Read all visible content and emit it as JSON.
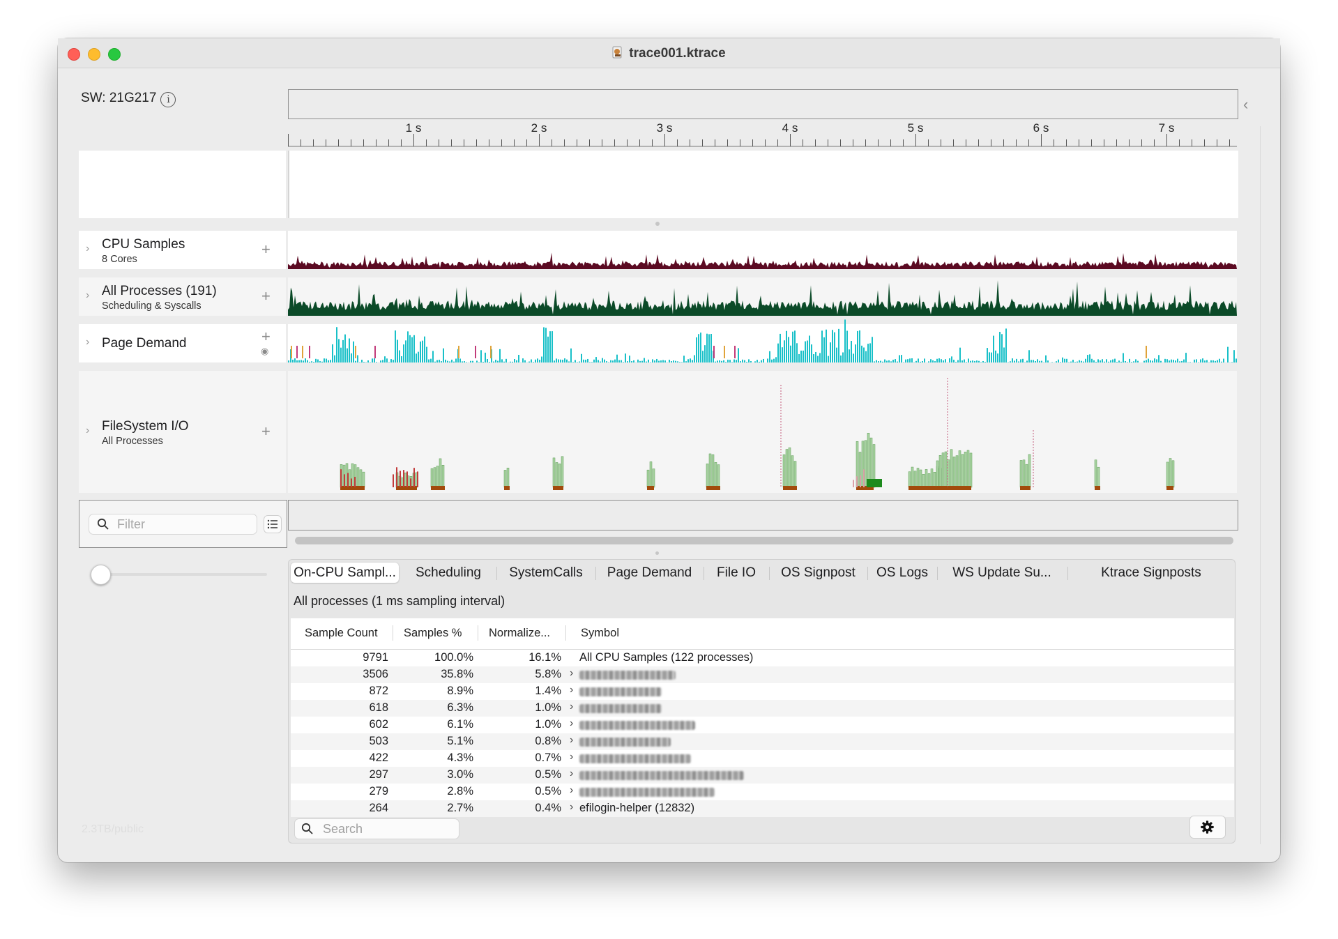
{
  "window": {
    "title": "trace001.ktrace"
  },
  "header": {
    "sw_label": "SW: 21G217",
    "info_glyph": "i"
  },
  "ruler": {
    "ticks": [
      "1 s",
      "2 s",
      "3 s",
      "4 s",
      "5 s",
      "6 s",
      "7 s"
    ]
  },
  "tracks": [
    {
      "name": "CPU Samples",
      "subtitle": "8 Cores",
      "color": "#5b0a22"
    },
    {
      "name": "All Processes (191)",
      "subtitle": "Scheduling & Syscalls",
      "color": "#0b4a28"
    },
    {
      "name": "Page Demand",
      "subtitle": "",
      "color": "#19c0c8"
    },
    {
      "name": "FileSystem I/O",
      "subtitle": "All Processes",
      "color": "#4c9a4a"
    }
  ],
  "filter": {
    "placeholder": "Filter"
  },
  "tabs": [
    "On-CPU Sampl...",
    "Scheduling",
    "SystemCalls",
    "Page Demand",
    "File IO",
    "OS Signpost",
    "OS Logs",
    "WS Update Su...",
    "Ktrace Signposts"
  ],
  "detail": {
    "subtitle": "All processes (1 ms sampling interval)",
    "columns": [
      "Sample Count",
      "Samples %",
      "Normalize...",
      "Symbol"
    ],
    "rows": [
      {
        "count": "9791",
        "pct": "100.0%",
        "norm": "16.1%",
        "symbol": "All CPU Samples (122 processes)",
        "blurred": false
      },
      {
        "count": "3506",
        "pct": "35.8%",
        "norm": "5.8%",
        "symbol": "",
        "blurred": true
      },
      {
        "count": "872",
        "pct": "8.9%",
        "norm": "1.4%",
        "symbol": "",
        "blurred": true
      },
      {
        "count": "618",
        "pct": "6.3%",
        "norm": "1.0%",
        "symbol": "",
        "blurred": true
      },
      {
        "count": "602",
        "pct": "6.1%",
        "norm": "1.0%",
        "symbol": "",
        "blurred": true
      },
      {
        "count": "503",
        "pct": "5.1%",
        "norm": "0.8%",
        "symbol": "",
        "blurred": true
      },
      {
        "count": "422",
        "pct": "4.3%",
        "norm": "0.7%",
        "symbol": "",
        "blurred": true
      },
      {
        "count": "297",
        "pct": "3.0%",
        "norm": "0.5%",
        "symbol": "",
        "blurred": true
      },
      {
        "count": "279",
        "pct": "2.8%",
        "norm": "0.5%",
        "symbol": "",
        "blurred": true
      },
      {
        "count": "264",
        "pct": "2.7%",
        "norm": "0.4%",
        "symbol": "efilogin-helper (12832)",
        "blurred": false
      }
    ],
    "search_placeholder": "Search"
  },
  "sidebar": {
    "faded_text": "2.3TB/public"
  }
}
